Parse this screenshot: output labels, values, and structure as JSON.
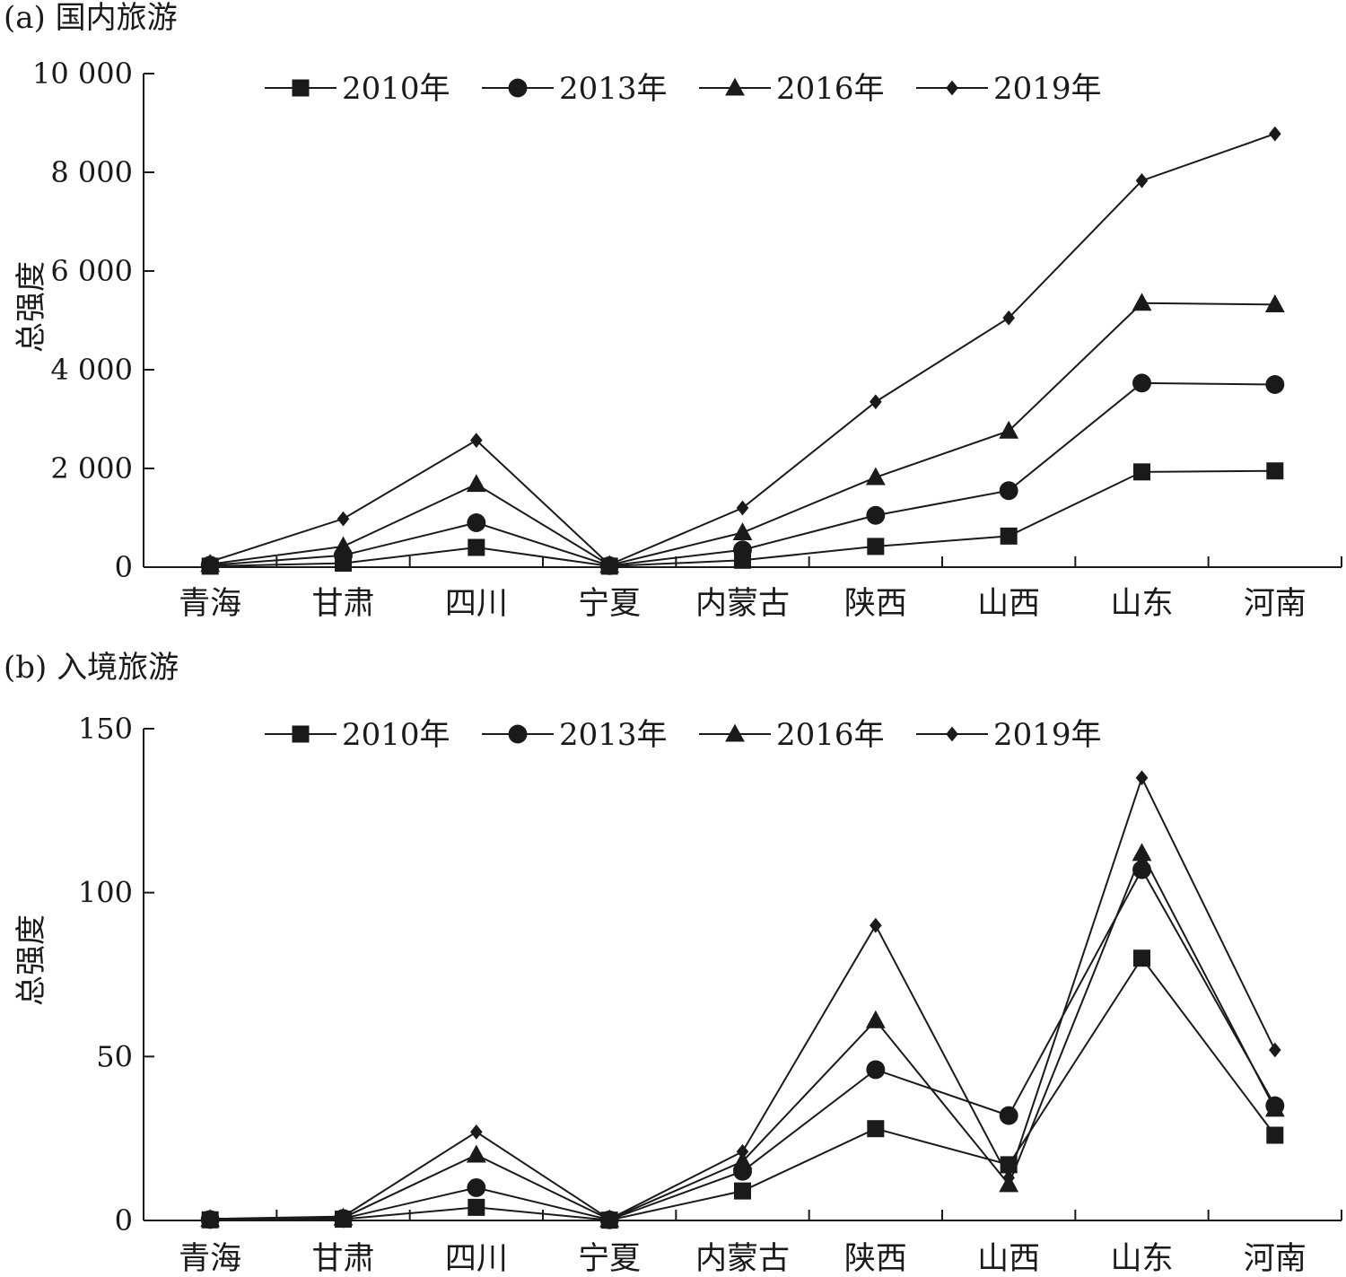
{
  "chart_data": [
    {
      "id": "a",
      "type": "line",
      "title": "(a) 国内旅游",
      "ylabel": "总强度",
      "xlabel": "",
      "categories": [
        "青海",
        "甘肃",
        "四川",
        "宁夏",
        "内蒙古",
        "陕西",
        "山西",
        "山东",
        "河南"
      ],
      "ylim": [
        0,
        10000
      ],
      "yticks": [
        0,
        2000,
        4000,
        6000,
        8000,
        10000
      ],
      "ytick_labels": [
        "0",
        "2 000",
        "4 000",
        "6 000",
        "8 000",
        "10 000"
      ],
      "legend_position": "top",
      "grid": false,
      "series": [
        {
          "name": "2010年",
          "marker": "square",
          "values": [
            20,
            80,
            400,
            20,
            140,
            420,
            630,
            1930,
            1950
          ]
        },
        {
          "name": "2013年",
          "marker": "circle",
          "values": [
            40,
            240,
            900,
            30,
            350,
            1050,
            1550,
            3730,
            3700
          ]
        },
        {
          "name": "2016年",
          "marker": "triangle",
          "values": [
            60,
            420,
            1680,
            40,
            700,
            1820,
            2760,
            5350,
            5320
          ]
        },
        {
          "name": "2019年",
          "marker": "diamond",
          "values": [
            110,
            980,
            2570,
            50,
            1200,
            3350,
            5050,
            7830,
            8780
          ]
        }
      ]
    },
    {
      "id": "b",
      "type": "line",
      "title": "(b) 入境旅游",
      "ylabel": "总强度",
      "xlabel": "",
      "categories": [
        "青海",
        "甘肃",
        "四川",
        "宁夏",
        "内蒙古",
        "陕西",
        "山西",
        "山东",
        "河南"
      ],
      "ylim": [
        0,
        150
      ],
      "yticks": [
        0,
        50,
        100,
        150
      ],
      "ytick_labels": [
        "0",
        "50",
        "100",
        "150"
      ],
      "legend_position": "top",
      "grid": false,
      "series": [
        {
          "name": "2010年",
          "marker": "square",
          "values": [
            0.2,
            0.4,
            4,
            0.1,
            9,
            28,
            17,
            80,
            26
          ]
        },
        {
          "name": "2013年",
          "marker": "circle",
          "values": [
            0.3,
            0.6,
            10,
            0.2,
            15,
            46,
            32,
            107,
            35
          ]
        },
        {
          "name": "2016年",
          "marker": "triangle",
          "values": [
            0.4,
            0.8,
            20,
            0.3,
            18,
            61,
            11,
            112,
            34
          ]
        },
        {
          "name": "2019年",
          "marker": "diamond",
          "values": [
            0.5,
            1.2,
            27,
            0.4,
            21,
            90,
            13,
            135,
            52
          ]
        }
      ]
    }
  ]
}
